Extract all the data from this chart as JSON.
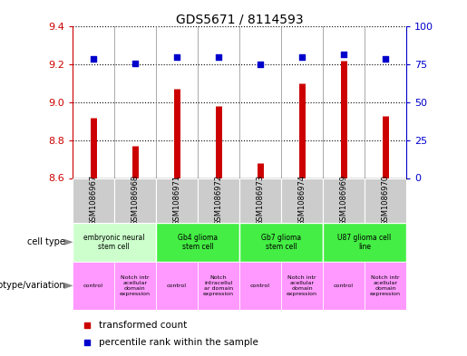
{
  "title": "GDS5671 / 8114593",
  "samples": [
    "GSM1086967",
    "GSM1086968",
    "GSM1086971",
    "GSM1086972",
    "GSM1086973",
    "GSM1086974",
    "GSM1086969",
    "GSM1086970"
  ],
  "transformed_counts": [
    8.92,
    8.77,
    9.07,
    8.98,
    8.68,
    9.1,
    9.22,
    8.93
  ],
  "percentile_ranks": [
    79,
    76,
    80,
    80,
    75,
    80,
    82,
    79
  ],
  "ylim_left": [
    8.6,
    9.4
  ],
  "ylim_right": [
    0,
    100
  ],
  "yticks_left": [
    8.6,
    8.8,
    9.0,
    9.2,
    9.4
  ],
  "yticks_right": [
    0,
    25,
    50,
    75,
    100
  ],
  "cell_types": [
    {
      "label": "embryonic neural\nstem cell",
      "span": [
        0,
        2
      ],
      "color": "#ccffcc"
    },
    {
      "label": "Gb4 glioma\nstem cell",
      "span": [
        2,
        4
      ],
      "color": "#44ee44"
    },
    {
      "label": "Gb7 glioma\nstem cell",
      "span": [
        4,
        6
      ],
      "color": "#44ee44"
    },
    {
      "label": "U87 glioma cell\nline",
      "span": [
        6,
        8
      ],
      "color": "#44ee44"
    }
  ],
  "genotypes": [
    {
      "label": "control",
      "span": [
        0,
        1
      ]
    },
    {
      "label": "Notch intr\nacellular\ndomain\nexpression",
      "span": [
        1,
        2
      ]
    },
    {
      "label": "control",
      "span": [
        2,
        3
      ]
    },
    {
      "label": "Notch\nintracellul\nar domain\nexpression",
      "span": [
        3,
        4
      ]
    },
    {
      "label": "control",
      "span": [
        4,
        5
      ]
    },
    {
      "label": "Notch intr\nacellular\ndomain\nexpression",
      "span": [
        5,
        6
      ]
    },
    {
      "label": "control",
      "span": [
        6,
        7
      ]
    },
    {
      "label": "Notch intr\nacellular\ndomain\nexpression",
      "span": [
        7,
        8
      ]
    }
  ],
  "genotype_color": "#ff99ff",
  "sample_bg_color": "#cccccc",
  "bar_color": "#cc0000",
  "dot_color": "#0000cc",
  "left_tick_color": "#cc0000",
  "right_tick_color": "#0000cc"
}
